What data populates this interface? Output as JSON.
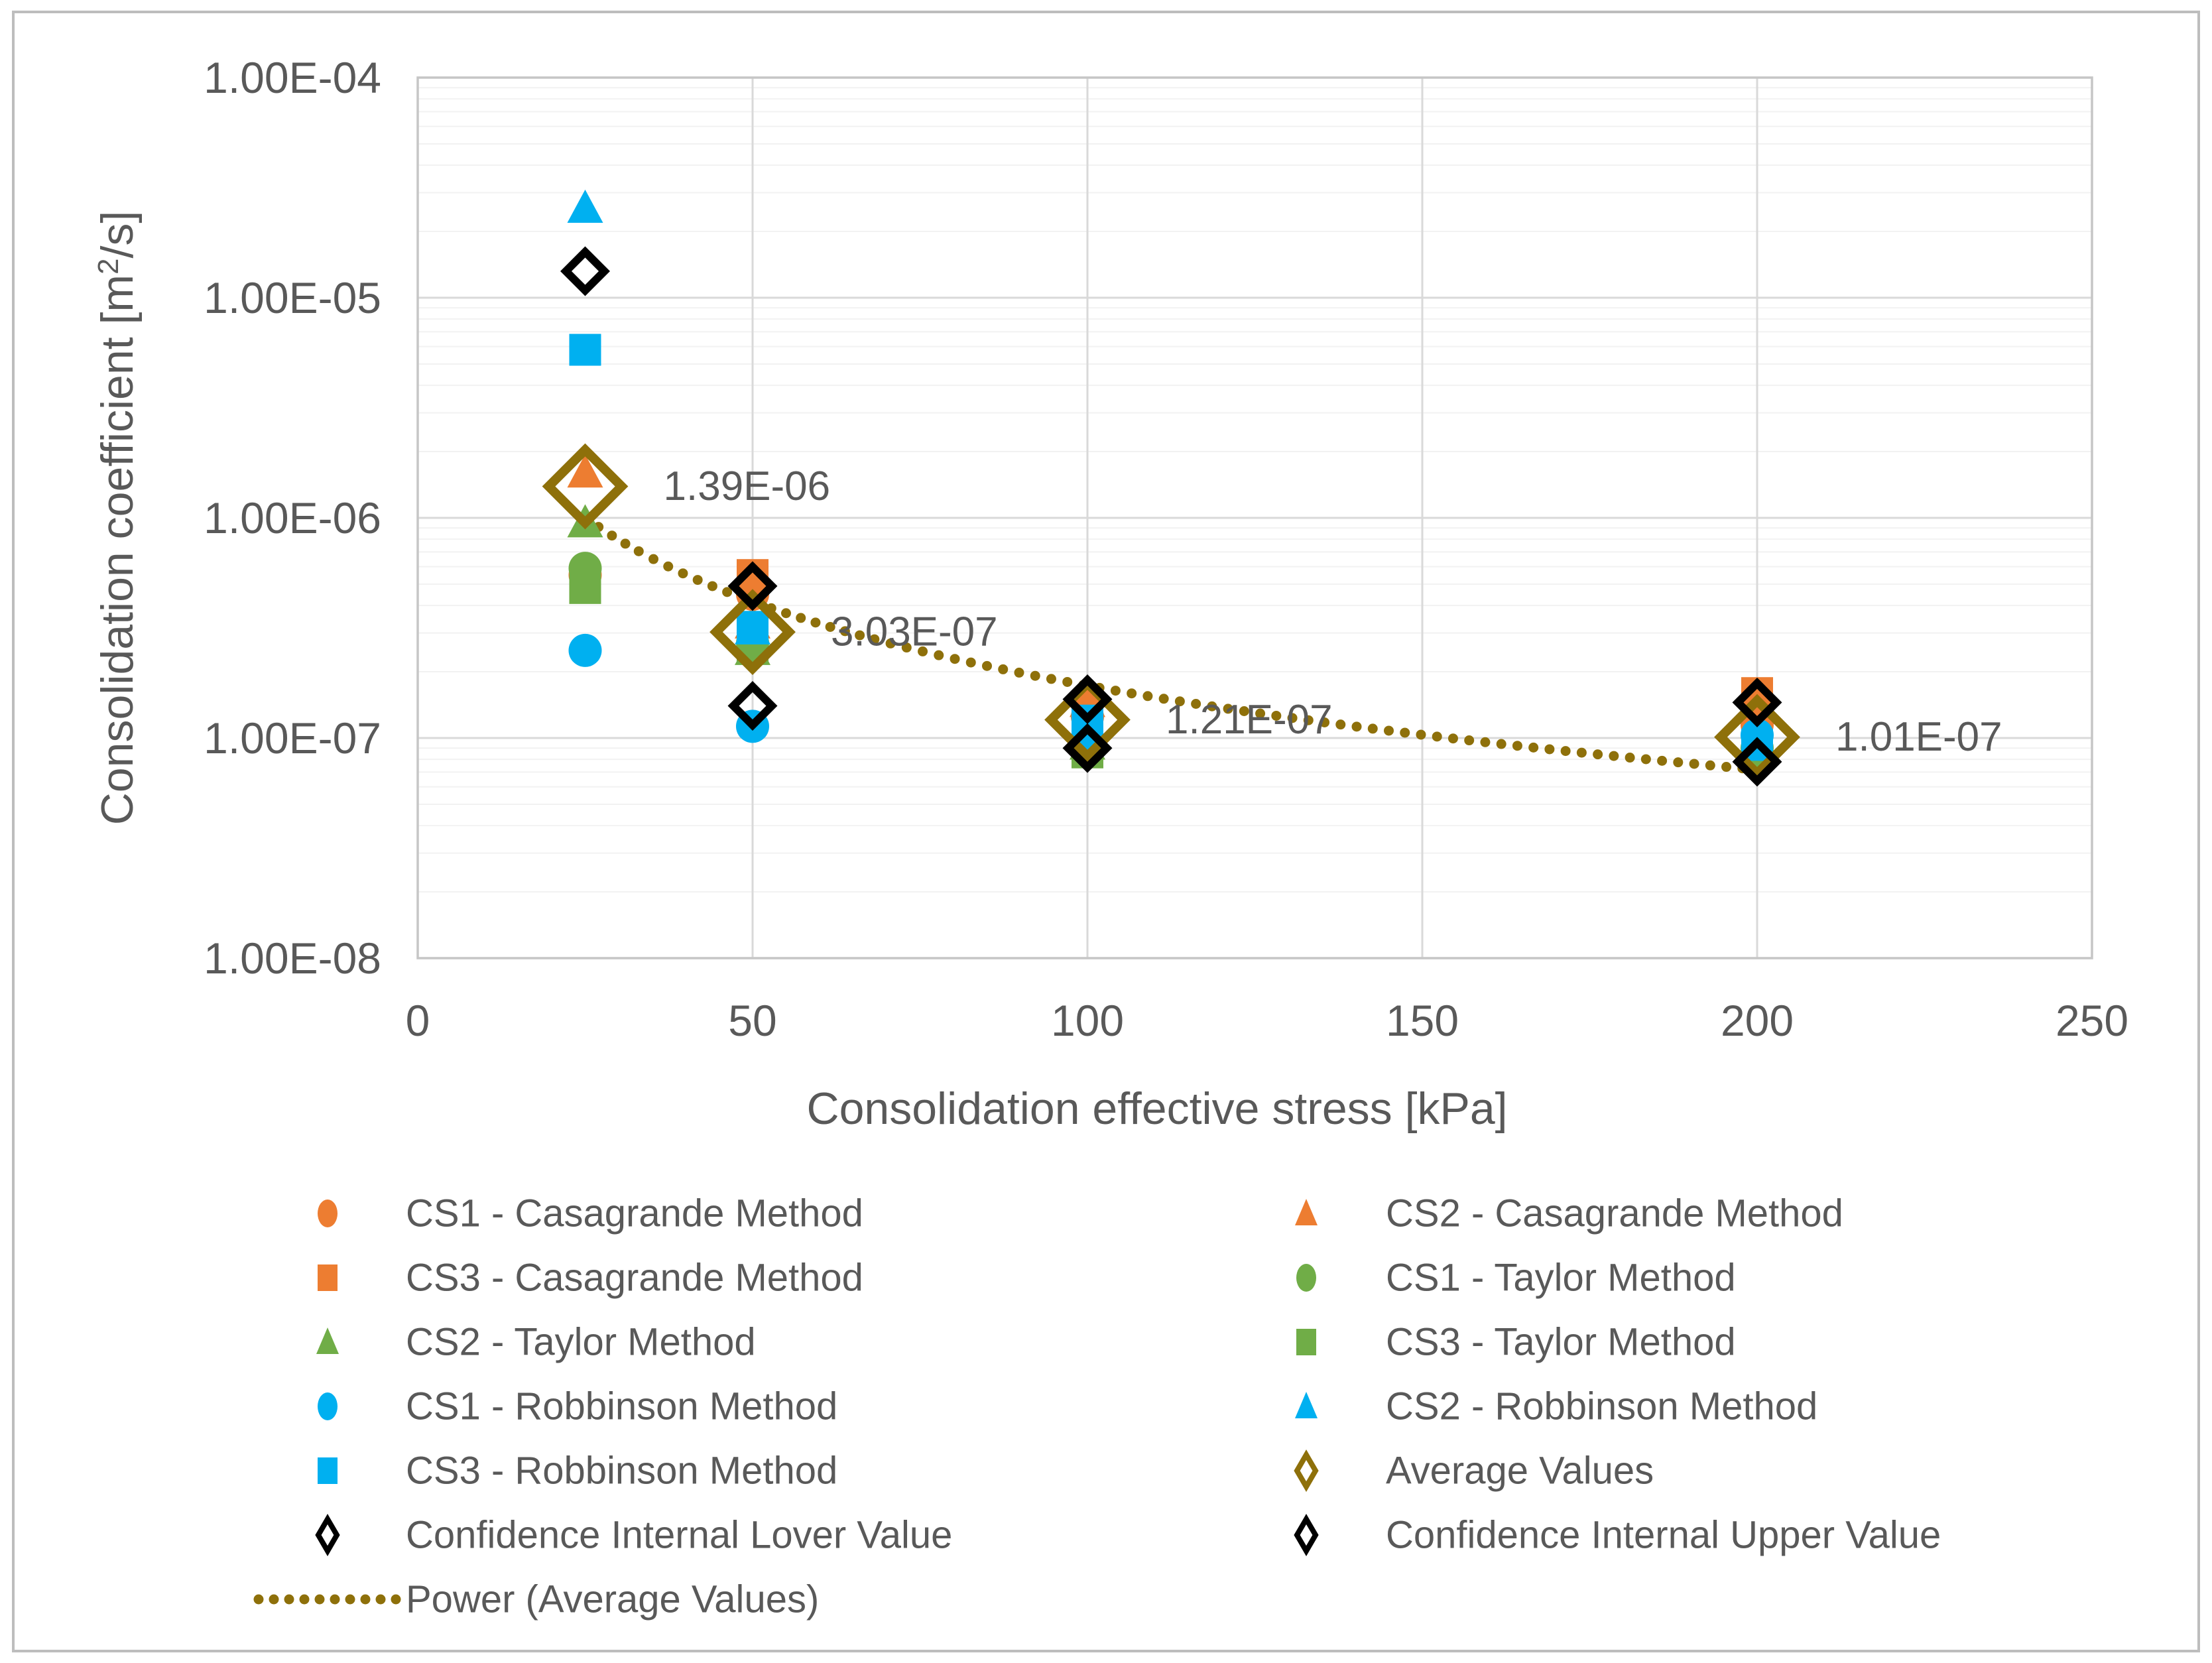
{
  "figure": {
    "background": "#FFFFFF",
    "border_color": "#BDBDBD",
    "text_color": "#595959",
    "gridline_major_color": "#D9D9D9",
    "gridline_minor_color": "#F2F2F2",
    "plot_border_color": "#C6C6C6"
  },
  "chart_data": {
    "type": "scatter",
    "title": "",
    "xlabel": "Consolidation effective stress [kPa]",
    "ylabel": "Consolidation coefficient [m2/s]",
    "ylabel_parts": {
      "prefix": "Consolidation coefficient [m",
      "sup": "2",
      "suffix": "/s]"
    },
    "x_axis": {
      "min": 0,
      "max": 250,
      "tick_step": 50,
      "tick_labels": [
        "0",
        "50",
        "100",
        "150",
        "200",
        "250"
      ],
      "tick_values": [
        0,
        50,
        100,
        150,
        200,
        250
      ]
    },
    "y_axis": {
      "scale": "log",
      "min": 1e-08,
      "max": 0.0001,
      "tick_labels": [
        "1.00E-04",
        "1.00E-05",
        "1.00E-06",
        "1.00E-07",
        "1.00E-08"
      ],
      "tick_values": [
        0.0001,
        1e-05,
        1e-06,
        1e-07,
        1e-08
      ],
      "grid": "major-and-minor"
    },
    "x_values": [
      25,
      50,
      100,
      200
    ],
    "series": [
      {
        "name": "CS1 - Casagrande Method",
        "marker": "circle",
        "color": "#ED7D31",
        "values": [
          5.5e-07,
          4.5e-07,
          1.25e-07,
          1.15e-07
        ]
      },
      {
        "name": "CS2 - Casagrande Method",
        "marker": "triangle",
        "color": "#ED7D31",
        "values": [
          1.6e-06,
          3.3e-07,
          1.45e-07,
          1.35e-07
        ]
      },
      {
        "name": "CS3 - Casagrande Method",
        "marker": "square",
        "color": "#ED7D31",
        "values": [
          5e-07,
          5.5e-07,
          1.3e-07,
          1.6e-07
        ]
      },
      {
        "name": "CS1 - Taylor Method",
        "marker": "circle",
        "color": "#70AD47",
        "values": [
          5.9e-07,
          2.7e-07,
          1e-07,
          9e-08
        ]
      },
      {
        "name": "CS2 - Taylor Method",
        "marker": "triangle",
        "color": "#70AD47",
        "values": [
          9.5e-07,
          2.5e-07,
          9.3e-08,
          8.8e-08
        ]
      },
      {
        "name": "CS3 - Taylor Method",
        "marker": "square",
        "color": "#70AD47",
        "values": [
          4.8e-07,
          2.55e-07,
          8.6e-08,
          8.5e-08
        ]
      },
      {
        "name": "CS1 - Robbinson Method",
        "marker": "circle",
        "color": "#00B0F0",
        "values": [
          2.5e-07,
          1.13e-07,
          9e-08,
          1.03e-07
        ]
      },
      {
        "name": "CS2 - Robbinson Method",
        "marker": "triangle",
        "color": "#00B0F0",
        "values": [
          2.55e-05,
          3.1e-07,
          1.15e-07,
          9.6e-08
        ]
      },
      {
        "name": "CS3 - Robbinson Method",
        "marker": "square",
        "color": "#00B0F0",
        "values": [
          5.8e-06,
          3.2e-07,
          1.2e-07,
          9.3e-08
        ]
      },
      {
        "name": "Average Values",
        "marker": "diamond-open-large",
        "color": "#8E700A",
        "values": [
          1.39e-06,
          3.03e-07,
          1.21e-07,
          1.01e-07
        ]
      },
      {
        "name": "Confidence Internal Lover Value",
        "marker": "diamond-open-small",
        "color": "#000000",
        "values": [
          null,
          1.4e-07,
          9e-08,
          7.8e-08
        ]
      },
      {
        "name": "Confidence Internal Upper Value",
        "marker": "diamond-open-small",
        "color": "#000000",
        "values": [
          1.32e-05,
          4.9e-07,
          1.5e-07,
          1.45e-07
        ]
      }
    ],
    "data_labels": [
      {
        "x": 25,
        "value": 1.39e-06,
        "text": "1.39E-06"
      },
      {
        "x": 50,
        "value": 3.03e-07,
        "text": "3.03E-07"
      },
      {
        "x": 100,
        "value": 1.21e-07,
        "text": "1.21E-07"
      },
      {
        "x": 200,
        "value": 1.01e-07,
        "text": "1.01E-07"
      }
    ],
    "trendline": {
      "name": "Power (Average Values)",
      "type": "power",
      "coefficient": 5.94e-05,
      "exponent": -1.268,
      "x_start": 25,
      "x_end": 201,
      "color": "#8E700A",
      "style": "dotted"
    },
    "legend_position": "bottom"
  },
  "legend": {
    "rows": [
      [
        {
          "label": "CS1 - Casagrande Method",
          "marker": "circle",
          "color": "#ED7D31"
        },
        {
          "label": "CS2 - Casagrande Method",
          "marker": "triangle",
          "color": "#ED7D31"
        }
      ],
      [
        {
          "label": "CS3 - Casagrande Method",
          "marker": "square",
          "color": "#ED7D31"
        },
        {
          "label": "CS1 - Taylor Method",
          "marker": "circle",
          "color": "#70AD47"
        }
      ],
      [
        {
          "label": "CS2 - Taylor Method",
          "marker": "triangle",
          "color": "#70AD47"
        },
        {
          "label": "CS3 - Taylor Method",
          "marker": "square",
          "color": "#70AD47"
        }
      ],
      [
        {
          "label": "CS1 - Robbinson Method",
          "marker": "circle",
          "color": "#00B0F0"
        },
        {
          "label": "CS2 - Robbinson Method",
          "marker": "triangle",
          "color": "#00B0F0"
        }
      ],
      [
        {
          "label": "CS3 - Robbinson Method",
          "marker": "square",
          "color": "#00B0F0"
        },
        {
          "label": "Average Values",
          "marker": "diamond-thin",
          "color": "#8E700A"
        }
      ],
      [
        {
          "label": "Confidence Internal Lover Value",
          "marker": "diamond-thin",
          "color": "#000000"
        },
        {
          "label": "Confidence Internal Upper Value",
          "marker": "diamond-thin",
          "color": "#000000"
        }
      ],
      [
        {
          "label": "Power (Average Values)",
          "marker": "dotted-line",
          "color": "#8E700A"
        },
        null
      ]
    ]
  }
}
